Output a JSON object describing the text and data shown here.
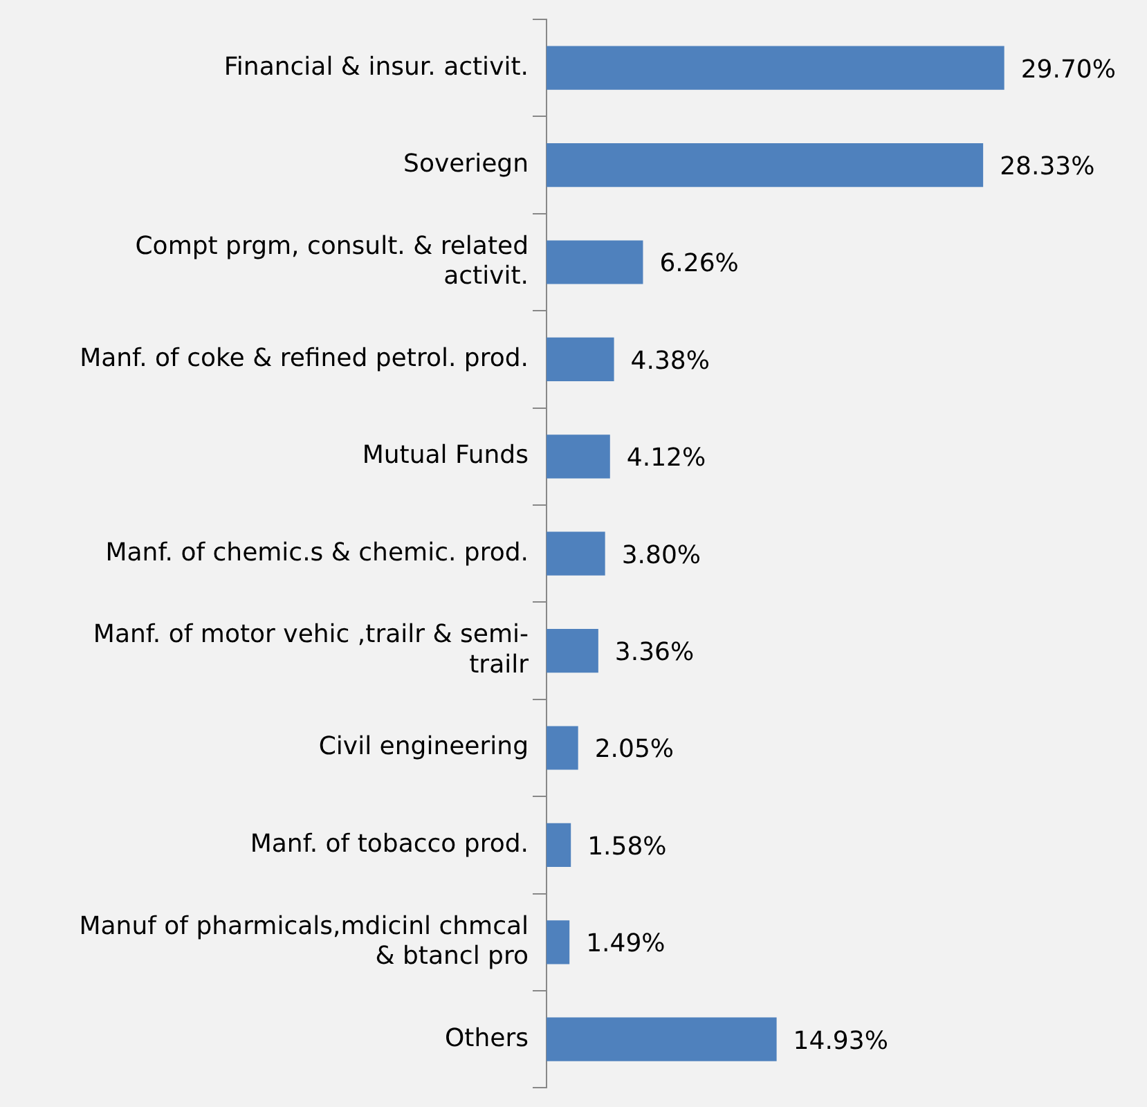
{
  "chart_data": {
    "type": "bar",
    "orientation": "horizontal",
    "tick_labels": "y",
    "categories": [
      "Financial & insur. activit.",
      "Soveriegn",
      "Compt prgm, consult. & related activit.",
      "Manf. of coke & refined petrol. prod.",
      "Mutual Funds",
      "Manf. of chemic.s & chemic. prod.",
      "Manf. of motor vehic ,trailr & semi-trailr",
      "Civil engineering",
      "Manf. of tobacco prod.",
      "Manuf of pharmicals,mdicinl chmcal & btancl pro",
      "Others"
    ],
    "values": [
      29.7,
      28.33,
      6.26,
      4.38,
      4.12,
      3.8,
      3.36,
      2.05,
      1.58,
      1.49,
      14.93
    ],
    "value_labels": [
      "29.70%",
      "28.33%",
      "6.26%",
      "4.38%",
      "4.12%",
      "3.80%",
      "3.36%",
      "2.05%",
      "1.58%",
      "1.49%",
      "14.93%"
    ],
    "color": "#4f81bd",
    "grid": false,
    "legend": false
  }
}
